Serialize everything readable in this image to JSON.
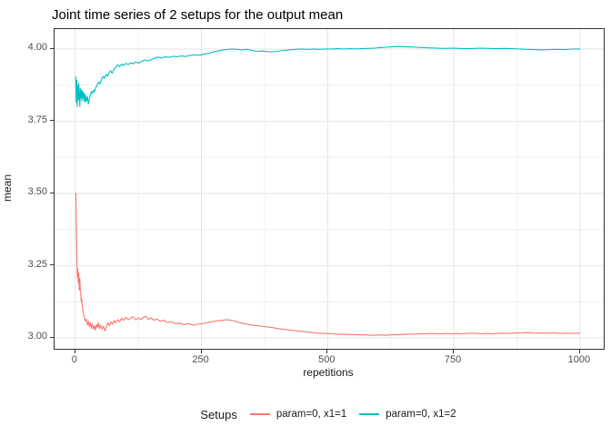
{
  "chart_data": {
    "type": "line",
    "title": "Joint time series of 2 setups for the output mean",
    "xlabel": "repetitions",
    "ylabel": "mean",
    "xlim": [
      -41,
      1047
    ],
    "ylim": [
      2.962,
      4.069
    ],
    "grid": true,
    "legend_position": "bottom",
    "x_ticks": [
      {
        "v": 0,
        "label": "0"
      },
      {
        "v": 250,
        "label": "250"
      },
      {
        "v": 500,
        "label": "500"
      },
      {
        "v": 750,
        "label": "750"
      },
      {
        "v": 1000,
        "label": "1000"
      }
    ],
    "y_ticks": [
      {
        "v": 3.0,
        "label": "3.00"
      },
      {
        "v": 3.25,
        "label": "3.25"
      },
      {
        "v": 3.5,
        "label": "3.50"
      },
      {
        "v": 3.75,
        "label": "3.75"
      },
      {
        "v": 4.0,
        "label": "4.00"
      }
    ],
    "x_minor_ticks": [
      125,
      375,
      625,
      875
    ],
    "y_minor_ticks": [
      3.125,
      3.375,
      3.625,
      3.875
    ],
    "series": [
      {
        "name": "param=0, x1=1",
        "color": "#F8766D",
        "points": [
          [
            1,
            3.503
          ],
          [
            2,
            3.42
          ],
          [
            3,
            3.3
          ],
          [
            4,
            3.21
          ],
          [
            5,
            3.24
          ],
          [
            6,
            3.19
          ],
          [
            7,
            3.225
          ],
          [
            8,
            3.165
          ],
          [
            9,
            3.205
          ],
          [
            10,
            3.17
          ],
          [
            11,
            3.15
          ],
          [
            12,
            3.125
          ],
          [
            13,
            3.135
          ],
          [
            14,
            3.11
          ],
          [
            15,
            3.095
          ],
          [
            16,
            3.085
          ],
          [
            18,
            3.07
          ],
          [
            20,
            3.058
          ],
          [
            22,
            3.065
          ],
          [
            24,
            3.045
          ],
          [
            26,
            3.058
          ],
          [
            28,
            3.038
          ],
          [
            30,
            3.052
          ],
          [
            32,
            3.032
          ],
          [
            34,
            3.048
          ],
          [
            36,
            3.03
          ],
          [
            38,
            3.042
          ],
          [
            40,
            3.026
          ],
          [
            42,
            3.046
          ],
          [
            44,
            3.036
          ],
          [
            46,
            3.052
          ],
          [
            48,
            3.032
          ],
          [
            50,
            3.044
          ],
          [
            53,
            3.03
          ],
          [
            56,
            3.04
          ],
          [
            59,
            3.024
          ],
          [
            62,
            3.038
          ],
          [
            65,
            3.052
          ],
          [
            68,
            3.042
          ],
          [
            71,
            3.055
          ],
          [
            74,
            3.047
          ],
          [
            77,
            3.06
          ],
          [
            80,
            3.052
          ],
          [
            84,
            3.063
          ],
          [
            88,
            3.056
          ],
          [
            92,
            3.068
          ],
          [
            96,
            3.06
          ],
          [
            100,
            3.071
          ],
          [
            105,
            3.063
          ],
          [
            110,
            3.069
          ],
          [
            115,
            3.073
          ],
          [
            120,
            3.062
          ],
          [
            125,
            3.069
          ],
          [
            130,
            3.063
          ],
          [
            135,
            3.071
          ],
          [
            140,
            3.074
          ],
          [
            145,
            3.064
          ],
          [
            150,
            3.069
          ],
          [
            156,
            3.061
          ],
          [
            162,
            3.065
          ],
          [
            168,
            3.057
          ],
          [
            175,
            3.061
          ],
          [
            182,
            3.053
          ],
          [
            190,
            3.056
          ],
          [
            198,
            3.049
          ],
          [
            206,
            3.051
          ],
          [
            215,
            3.046
          ],
          [
            224,
            3.049
          ],
          [
            233,
            3.044
          ],
          [
            242,
            3.047
          ],
          [
            252,
            3.049
          ],
          [
            262,
            3.053
          ],
          [
            272,
            3.056
          ],
          [
            282,
            3.059
          ],
          [
            292,
            3.061
          ],
          [
            300,
            3.063
          ],
          [
            308,
            3.061
          ],
          [
            316,
            3.058
          ],
          [
            325,
            3.053
          ],
          [
            335,
            3.049
          ],
          [
            345,
            3.045
          ],
          [
            355,
            3.043
          ],
          [
            365,
            3.041
          ],
          [
            375,
            3.039
          ],
          [
            385,
            3.037
          ],
          [
            395,
            3.034
          ],
          [
            405,
            3.031
          ],
          [
            415,
            3.029
          ],
          [
            425,
            3.027
          ],
          [
            435,
            3.025
          ],
          [
            445,
            3.023
          ],
          [
            455,
            3.021
          ],
          [
            465,
            3.019
          ],
          [
            475,
            3.017
          ],
          [
            485,
            3.016
          ],
          [
            495,
            3.015
          ],
          [
            505,
            3.014
          ],
          [
            515,
            3.013
          ],
          [
            525,
            3.012
          ],
          [
            535,
            3.012
          ],
          [
            545,
            3.011
          ],
          [
            555,
            3.011
          ],
          [
            565,
            3.01
          ],
          [
            575,
            3.01
          ],
          [
            585,
            3.009
          ],
          [
            595,
            3.009
          ],
          [
            605,
            3.01
          ],
          [
            615,
            3.009
          ],
          [
            625,
            3.01
          ],
          [
            635,
            3.011
          ],
          [
            645,
            3.011
          ],
          [
            655,
            3.012
          ],
          [
            665,
            3.013
          ],
          [
            675,
            3.013
          ],
          [
            685,
            3.014
          ],
          [
            695,
            3.014
          ],
          [
            705,
            3.015
          ],
          [
            715,
            3.014
          ],
          [
            725,
            3.014
          ],
          [
            735,
            3.015
          ],
          [
            745,
            3.014
          ],
          [
            755,
            3.015
          ],
          [
            765,
            3.014
          ],
          [
            775,
            3.015
          ],
          [
            785,
            3.016
          ],
          [
            795,
            3.015
          ],
          [
            805,
            3.014
          ],
          [
            815,
            3.015
          ],
          [
            825,
            3.014
          ],
          [
            835,
            3.015
          ],
          [
            845,
            3.016
          ],
          [
            855,
            3.015
          ],
          [
            865,
            3.016
          ],
          [
            875,
            3.017
          ],
          [
            885,
            3.017
          ],
          [
            895,
            3.018
          ],
          [
            905,
            3.017
          ],
          [
            915,
            3.016
          ],
          [
            925,
            3.017
          ],
          [
            935,
            3.016
          ],
          [
            945,
            3.017
          ],
          [
            955,
            3.016
          ],
          [
            965,
            3.015
          ],
          [
            975,
            3.016
          ],
          [
            985,
            3.015
          ],
          [
            1000,
            3.016
          ]
        ]
      },
      {
        "name": "param=0, x1=2",
        "color": "#00BFC4",
        "points": [
          [
            1,
            3.905
          ],
          [
            2,
            3.815
          ],
          [
            3,
            3.892
          ],
          [
            4,
            3.8
          ],
          [
            5,
            3.872
          ],
          [
            6,
            3.824
          ],
          [
            7,
            3.882
          ],
          [
            8,
            3.838
          ],
          [
            9,
            3.802
          ],
          [
            10,
            3.864
          ],
          [
            11,
            3.83
          ],
          [
            12,
            3.858
          ],
          [
            13,
            3.82
          ],
          [
            14,
            3.855
          ],
          [
            15,
            3.832
          ],
          [
            16,
            3.85
          ],
          [
            17,
            3.822
          ],
          [
            18,
            3.846
          ],
          [
            19,
            3.816
          ],
          [
            20,
            3.84
          ],
          [
            22,
            3.818
          ],
          [
            24,
            3.836
          ],
          [
            26,
            3.81
          ],
          [
            28,
            3.826
          ],
          [
            30,
            3.842
          ],
          [
            32,
            3.852
          ],
          [
            34,
            3.846
          ],
          [
            36,
            3.858
          ],
          [
            38,
            3.851
          ],
          [
            40,
            3.865
          ],
          [
            43,
            3.873
          ],
          [
            46,
            3.885
          ],
          [
            49,
            3.879
          ],
          [
            52,
            3.895
          ],
          [
            55,
            3.905
          ],
          [
            58,
            3.899
          ],
          [
            61,
            3.912
          ],
          [
            64,
            3.906
          ],
          [
            67,
            3.918
          ],
          [
            70,
            3.925
          ],
          [
            73,
            3.916
          ],
          [
            76,
            3.928
          ],
          [
            80,
            3.936
          ],
          [
            84,
            3.945
          ],
          [
            88,
            3.939
          ],
          [
            92,
            3.948
          ],
          [
            96,
            3.943
          ],
          [
            100,
            3.95
          ],
          [
            105,
            3.946
          ],
          [
            110,
            3.952
          ],
          [
            115,
            3.949
          ],
          [
            120,
            3.955
          ],
          [
            126,
            3.951
          ],
          [
            132,
            3.958
          ],
          [
            138,
            3.962
          ],
          [
            144,
            3.958
          ],
          [
            150,
            3.963
          ],
          [
            157,
            3.968
          ],
          [
            164,
            3.972
          ],
          [
            171,
            3.969
          ],
          [
            178,
            3.973
          ],
          [
            186,
            3.971
          ],
          [
            194,
            3.975
          ],
          [
            202,
            3.973
          ],
          [
            210,
            3.976
          ],
          [
            219,
            3.974
          ],
          [
            228,
            3.978
          ],
          [
            237,
            3.98
          ],
          [
            246,
            3.978
          ],
          [
            255,
            3.982
          ],
          [
            264,
            3.985
          ],
          [
            273,
            3.99
          ],
          [
            282,
            3.993
          ],
          [
            291,
            3.996
          ],
          [
            300,
            3.998
          ],
          [
            310,
            4.0
          ],
          [
            320,
            3.999
          ],
          [
            330,
            3.997
          ],
          [
            340,
            3.999
          ],
          [
            350,
            3.995
          ],
          [
            360,
            3.992
          ],
          [
            370,
            3.993
          ],
          [
            380,
            3.991
          ],
          [
            390,
            3.99
          ],
          [
            400,
            3.992
          ],
          [
            412,
            3.995
          ],
          [
            424,
            3.997
          ],
          [
            436,
            3.999
          ],
          [
            448,
            4.0
          ],
          [
            460,
            3.999
          ],
          [
            472,
            4.0
          ],
          [
            484,
            3.999
          ],
          [
            496,
            4.0
          ],
          [
            508,
            4.0
          ],
          [
            520,
            4.001
          ],
          [
            532,
            4.0
          ],
          [
            544,
            4.001
          ],
          [
            556,
            4.0
          ],
          [
            568,
            4.001
          ],
          [
            580,
            4.002
          ],
          [
            592,
            4.003
          ],
          [
            604,
            4.005
          ],
          [
            616,
            4.006
          ],
          [
            628,
            4.008
          ],
          [
            640,
            4.009
          ],
          [
            652,
            4.008
          ],
          [
            664,
            4.007
          ],
          [
            676,
            4.006
          ],
          [
            688,
            4.005
          ],
          [
            700,
            4.004
          ],
          [
            715,
            4.003
          ],
          [
            730,
            4.002
          ],
          [
            745,
            4.003
          ],
          [
            760,
            4.002
          ],
          [
            775,
            4.001
          ],
          [
            790,
            4.002
          ],
          [
            805,
            4.003
          ],
          [
            820,
            4.002
          ],
          [
            835,
            4.001
          ],
          [
            850,
            4.002
          ],
          [
            865,
            4.001
          ],
          [
            880,
            4.0
          ],
          [
            895,
            3.999
          ],
          [
            910,
            3.998
          ],
          [
            925,
            3.997
          ],
          [
            940,
            3.998
          ],
          [
            955,
            3.999
          ],
          [
            970,
            3.998
          ],
          [
            985,
            4.0
          ],
          [
            1000,
            4.0
          ]
        ]
      }
    ]
  },
  "legend": {
    "title": "Setups",
    "items": [
      {
        "label": "param=0, x1=1",
        "color": "#F8766D"
      },
      {
        "label": "param=0, x1=2",
        "color": "#00BFC4"
      }
    ]
  },
  "colors": {
    "panel_border": "#333333",
    "grid_major": "#E4E4E4",
    "grid_minor": "#F1F1F1",
    "axis_text": "#4D4D4D",
    "series_1": "#F8766D",
    "series_2": "#00BFC4"
  }
}
